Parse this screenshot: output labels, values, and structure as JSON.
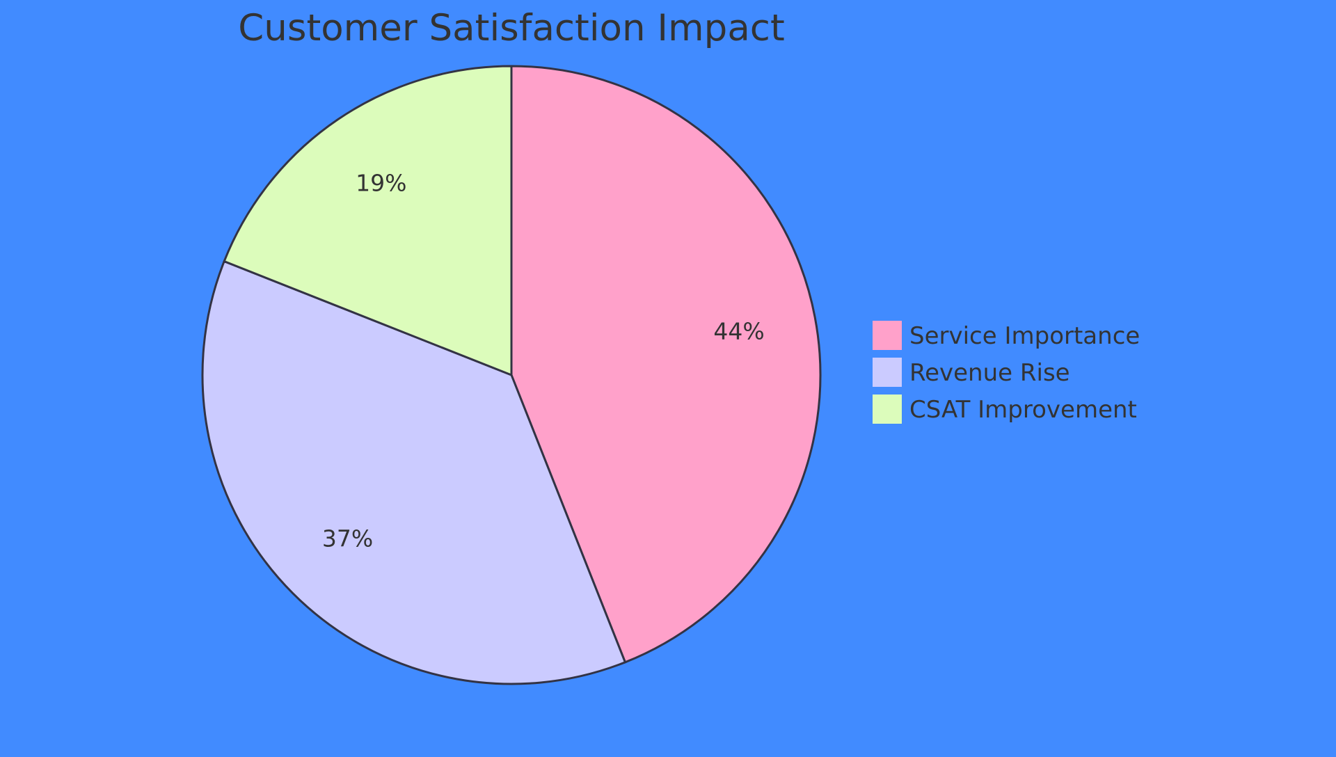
{
  "background_color": "#418bff",
  "chart_data": {
    "type": "pie",
    "title": "Customer Satisfaction Impact",
    "slices": [
      {
        "label": "Service Importance",
        "value": 44,
        "display": "44%",
        "color": "#ffa1ca"
      },
      {
        "label": "Revenue Rise",
        "value": 37,
        "display": "37%",
        "color": "#cbcbff"
      },
      {
        "label": "CSAT Improvement",
        "value": 19,
        "display": "19%",
        "color": "#dcfcbb"
      }
    ],
    "stroke_color": "#333344",
    "legend_position": "right"
  }
}
